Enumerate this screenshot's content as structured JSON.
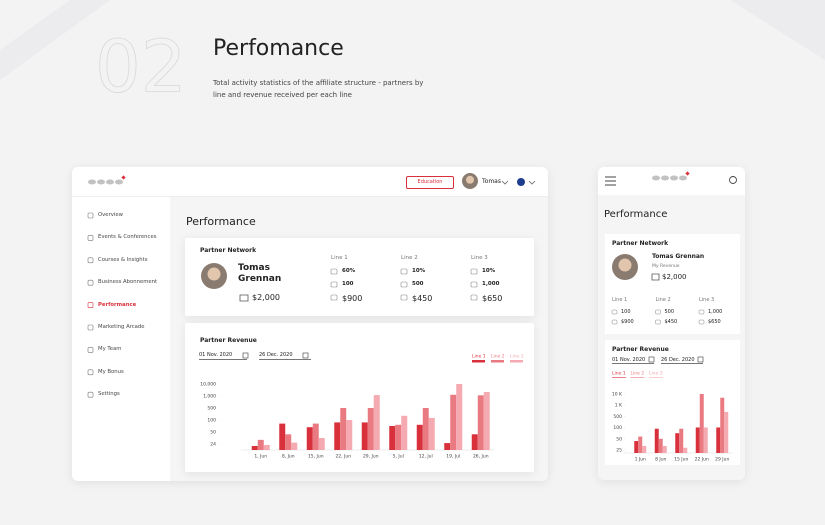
{
  "hero": {
    "number": "02",
    "title": "Perfomance",
    "description": "Total activity statistics of the affiliate structure - partners by line and revenue received per each line"
  },
  "desktop": {
    "header": {
      "button": "Education",
      "user": "Tomas"
    },
    "nav": [
      "Overview",
      "Events & Conferences",
      "Courses & Insights",
      "Business Abonnement",
      "Performance",
      "Marketing Arcade",
      "My Team",
      "My Bonus",
      "Settings"
    ],
    "active_nav": "Performance",
    "page_title": "Performance",
    "network": {
      "title": "Partner Network",
      "name": "Tomas Grennan",
      "amount": "$2,000",
      "lines": [
        {
          "label": "Line 1",
          "percent": "60%",
          "count": "100",
          "amount": "$900"
        },
        {
          "label": "Line 2",
          "percent": "10%",
          "count": "500",
          "amount": "$450"
        },
        {
          "label": "Line 3",
          "percent": "10%",
          "count": "1,000",
          "amount": "$650"
        }
      ]
    },
    "revenue": {
      "title": "Partner Revenue",
      "date_from": "01 Nov. 2020",
      "date_to": "26 Dec. 2020",
      "chart": {
        "type": "bar",
        "categories": [
          "1, Jun",
          "8, Jun",
          "15, Jun",
          "22, Jun",
          "29, Jun",
          "5, Jul",
          "12, Jul",
          "19, Jul",
          "26, Jun"
        ],
        "series": [
          {
            "name": "Line 1",
            "color": "#d9313c",
            "values": [
              16,
              85,
              70,
              90,
              90,
              75,
              80,
              26,
              45
            ]
          },
          {
            "name": "Line 2",
            "color": "#ea7a82",
            "values": [
              33,
              45,
              85,
              500,
              500,
              80,
              500,
              1900,
              1500
            ]
          },
          {
            "name": "Line 3",
            "color": "#f4aab0",
            "values": [
              20,
              27,
              37,
              100,
              1700,
              240,
              170,
              10000,
              4000
            ]
          }
        ],
        "ylim": [
          0,
          10000
        ],
        "yticks": [
          24,
          50,
          100,
          500,
          {
            "value": 1000,
            "label": "1,000"
          },
          {
            "value": 10000,
            "label": "10,000"
          }
        ]
      }
    }
  },
  "mobile": {
    "page_title": "Performance",
    "network": {
      "title": "Partner Network",
      "name": "Tomas Grennan",
      "subtitle": "My Revenue",
      "amount": "$2,000",
      "lines": [
        {
          "label": "Line 1",
          "count": "100",
          "amount": "$900"
        },
        {
          "label": "Line 2",
          "count": "500",
          "amount": "$450"
        },
        {
          "label": "Line 3",
          "count": "1,000",
          "amount": "$650"
        }
      ]
    },
    "revenue": {
      "title": "Partner Revenue",
      "date_from": "01 Nov. 2020",
      "date_to": "26 Dec. 2020",
      "chart": {
        "type": "bar",
        "categories": [
          "1 Jun",
          "8 Jun",
          "15 Jun",
          "22 Jun",
          "29 Jun"
        ],
        "series": [
          {
            "name": "Line 1",
            "color": "#d9313c",
            "values": [
              45,
              95,
              75,
              105,
              105
            ]
          },
          {
            "name": "Line 2",
            "color": "#ea7a82",
            "values": [
              60,
              50,
              95,
              10000,
              7000
            ]
          },
          {
            "name": "Line 3",
            "color": "#f4aab0",
            "values": [
              34,
              34,
              30,
              105,
              700
            ]
          }
        ],
        "ylim": [
          0,
          10000
        ],
        "yticks": [
          25,
          50,
          100,
          500,
          {
            "value": 1000,
            "label": "1 K"
          },
          {
            "value": 10000,
            "label": "10 K"
          }
        ]
      }
    }
  }
}
